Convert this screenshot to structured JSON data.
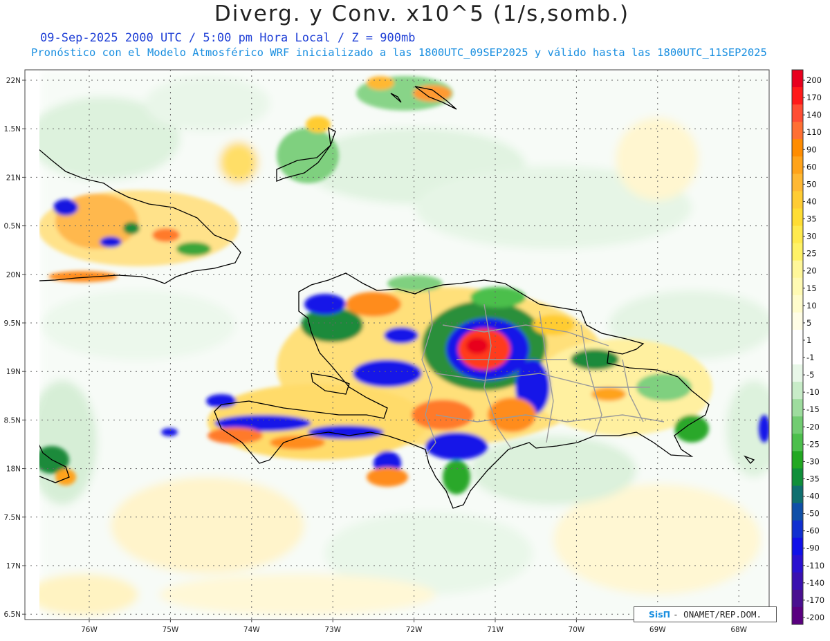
{
  "title": "Diverg. y Conv. x10^5 (1/s,somb.)",
  "subtitle1": "09-Sep-2025  2000 UTC / 5:00 pm Hora Local / Z = 900mb",
  "subtitle2": "Pronóstico con el Modelo Atmosférico WRF inicializado a las 1800UTC_09SEP2025 y válido hasta las  1800UTC_11SEP2025",
  "lat_labels": [
    "22N",
    "1.5N",
    "21N",
    "0.5N",
    "20N",
    "9.5N",
    "19N",
    "8.5N",
    "18N",
    "7.5N",
    "17N",
    "6.5N"
  ],
  "lon_labels": [
    "76W",
    "75W",
    "74W",
    "73W",
    "72W",
    "71W",
    "70W",
    "69W",
    "68W"
  ],
  "colorbar": {
    "labels": [
      "200",
      "170",
      "140",
      "110",
      "90",
      "60",
      "50",
      "40",
      "35",
      "30",
      "25",
      "20",
      "15",
      "10",
      "5",
      "1",
      "-1",
      "-5",
      "-10",
      "-15",
      "-20",
      "-25",
      "-30",
      "-35",
      "-40",
      "-50",
      "-60",
      "-90",
      "-110",
      "-140",
      "-170",
      "-200"
    ],
    "colors": [
      "#e8001e",
      "#ff1a1a",
      "#ff4d33",
      "#ff7033",
      "#ff8c00",
      "#ffa31a",
      "#ffb833",
      "#ffcc33",
      "#ffdd33",
      "#ffea4d",
      "#fff266",
      "#fff799",
      "#fffab3",
      "#fffccc",
      "#fffde6",
      "#ffffff",
      "#ffffff",
      "#e8f7e8",
      "#c8ecc8",
      "#9edc9e",
      "#72cc72",
      "#4cbf4c",
      "#22a822",
      "#0f8f3a",
      "#0f6f6f",
      "#0f4fa8",
      "#1030d0",
      "#1010e8",
      "#2a10d0",
      "#3a10b0",
      "#4a1090",
      "#5a0080"
    ]
  },
  "credit": {
    "logo": "SisΠ",
    "text": "- ONAMET/REP.DOM."
  }
}
